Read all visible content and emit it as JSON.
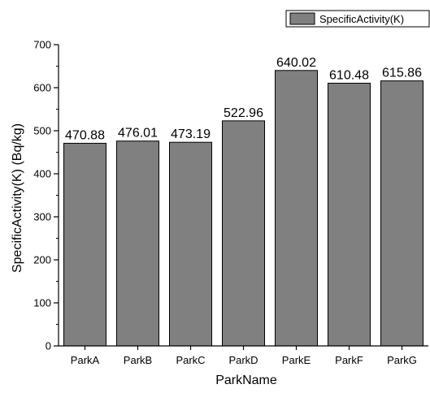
{
  "chart_data": {
    "type": "bar",
    "categories": [
      "ParkA",
      "ParkB",
      "ParkC",
      "ParkD",
      "ParkE",
      "ParkF",
      "ParkG"
    ],
    "series": [
      {
        "name": "SpecificActivity(K)",
        "values": [
          470.88,
          476.01,
          473.19,
          522.96,
          640.02,
          610.48,
          615.86
        ]
      }
    ],
    "value_labels": [
      "470.88",
      "476.01",
      "473.19",
      "522.96",
      "640.02",
      "610.48",
      "615.86"
    ],
    "xlabel": "ParkName",
    "ylabel": "SpecificActivity(K) (Bq/kg)",
    "ylim": [
      0,
      700
    ],
    "yticks": [
      0,
      100,
      200,
      300,
      400,
      500,
      600,
      700
    ],
    "legend_position": "top-right",
    "grid": false,
    "colors": {
      "bar_fill": "#808080",
      "bar_stroke": "#000000",
      "axis": "#000000"
    }
  }
}
